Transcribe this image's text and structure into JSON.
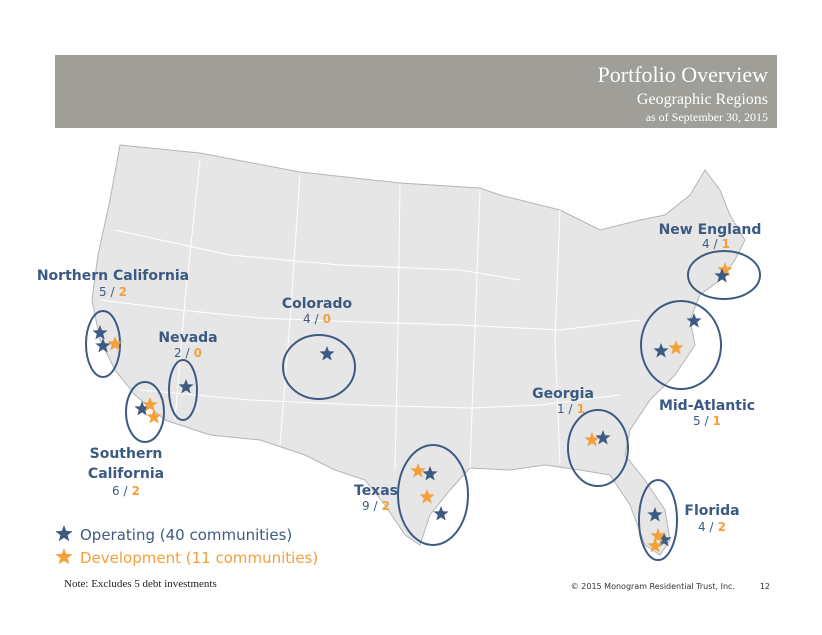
{
  "header": {
    "title": "Portfolio Overview",
    "subtitle": "Geographic Regions",
    "date": "as of September 30, 2015"
  },
  "count_separator": "/",
  "regions": [
    {
      "name": "Northern California",
      "operating": 5,
      "development": 2
    },
    {
      "name": "Nevada",
      "operating": 2,
      "development": 0
    },
    {
      "name": "Colorado",
      "operating": 4,
      "development": 0
    },
    {
      "name": "Southern California",
      "operating": 6,
      "development": 2
    },
    {
      "name": "Texas",
      "operating": 9,
      "development": 2
    },
    {
      "name": "Georgia",
      "operating": 1,
      "development": 1
    },
    {
      "name": "Mid-Atlantic",
      "operating": 5,
      "development": 1
    },
    {
      "name": "New England",
      "operating": 4,
      "development": 1
    },
    {
      "name": "Florida",
      "operating": 4,
      "development": 2
    }
  ],
  "legend": {
    "operating": "Operating (40 communities)",
    "development": "Development (11 communities)"
  },
  "note": "Note:  Excludes 5 debt investments",
  "footer": {
    "copyright": "© 2015 Monogram Residential Trust, Inc.",
    "page": "12"
  }
}
